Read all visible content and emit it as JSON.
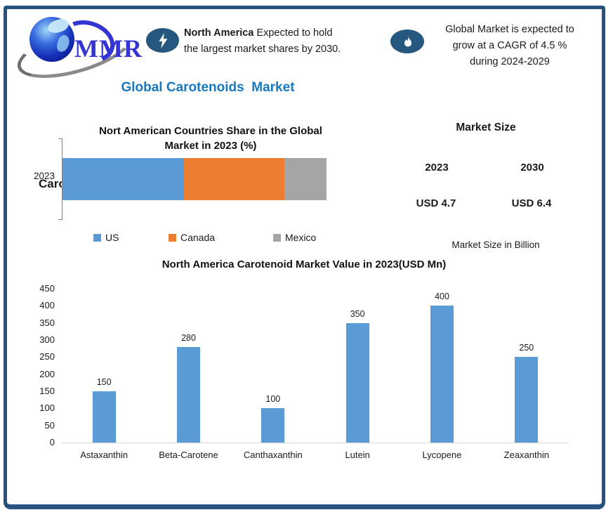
{
  "frame": {
    "border_color": "#27517E",
    "background": "#FFFFFF"
  },
  "logo": {
    "text": "MMR",
    "color": "#3434D4"
  },
  "callouts": {
    "left": {
      "icon": "lightning-icon",
      "line1_bold": "North America",
      "line1_rest": " Expected to hold",
      "line2": "the largest market shares by 2030."
    },
    "right": {
      "icon": "flame-icon",
      "line1": "Global Market is expected to",
      "line2": "grow at a CAGR of 4.5 %",
      "line3": "during 2024-2029"
    }
  },
  "page_title": "Global Carotenoids  Market",
  "market_size_panel": {
    "title": "Market Size",
    "year_2023": "2023",
    "year_2030": "2030",
    "value_2023": "USD 4.7",
    "value_2030": "USD 6.4",
    "footnote": "Market Size in Billion"
  },
  "chart_data": [
    {
      "type": "bar",
      "variant": "horizontal-stacked",
      "title": "Nort American Countries Share in the Global Market in 2023 (%)",
      "title_lines": [
        "Nort American Countries Share in the Global",
        "Market in 2023 (%)"
      ],
      "categories": [
        "2023"
      ],
      "clipped_label": "Caro",
      "series": [
        {
          "name": "US",
          "value": 46,
          "color": "#5B9BD5"
        },
        {
          "name": "Canada",
          "value": 38,
          "color": "#ED7D31"
        },
        {
          "name": "Mexico",
          "value": 16,
          "color": "#A5A5A5"
        }
      ],
      "xlim": [
        0,
        100
      ],
      "legend_position": "bottom",
      "grid": false
    },
    {
      "type": "bar",
      "title": "North America Carotenoid Market Value in 2023(USD Mn)",
      "categories": [
        "Astaxanthin",
        "Beta-Carotene",
        "Canthaxanthin",
        "Lutein",
        "Lycopene",
        "Zeaxanthin"
      ],
      "values": [
        150,
        280,
        100,
        350,
        400,
        250
      ],
      "ylim": [
        0,
        450
      ],
      "ytick_step": 50,
      "bar_color": "#5B9BD5",
      "data_labels": [
        150,
        280,
        100,
        350,
        400,
        250
      ],
      "grid": false,
      "legend_position": "none"
    }
  ]
}
